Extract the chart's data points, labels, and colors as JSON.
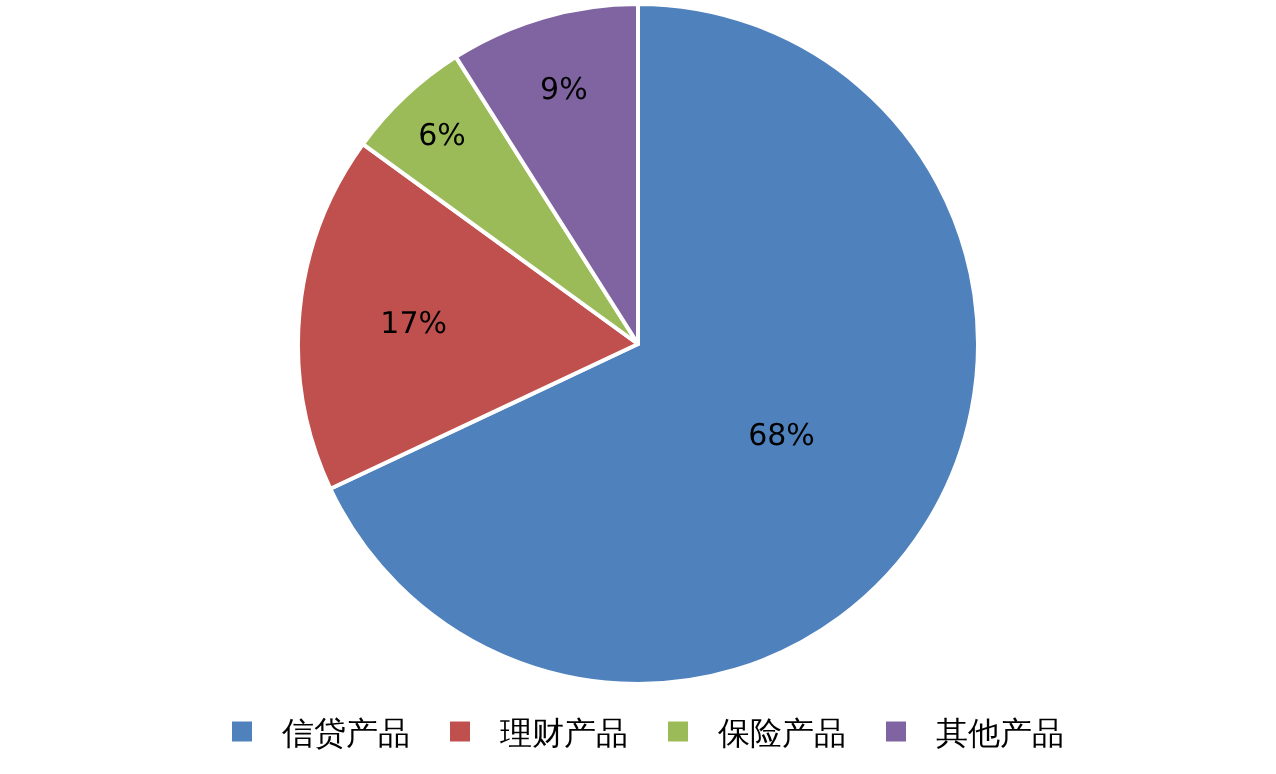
{
  "chart_data": {
    "type": "pie",
    "categories": [
      "信贷产品",
      "理财产品",
      "保险产品",
      "其他产品"
    ],
    "values": [
      68,
      17,
      6,
      9
    ],
    "colors": [
      "#4f81bd",
      "#c0504d",
      "#9bbb59",
      "#8064a2"
    ],
    "value_labels": [
      "68%",
      "17%",
      "6%",
      "9%"
    ],
    "legend": "bottom"
  }
}
